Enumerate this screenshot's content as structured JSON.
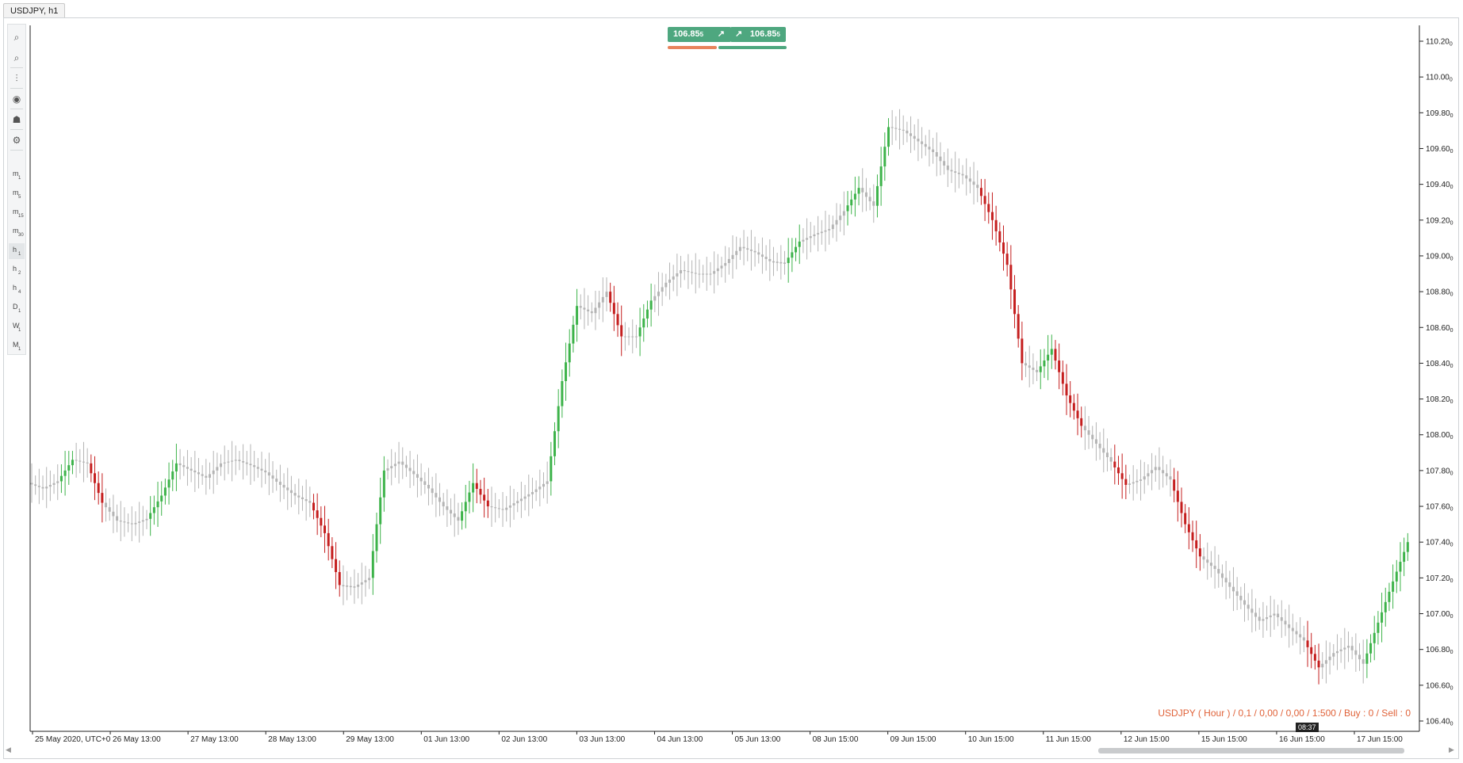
{
  "tab": {
    "title": "USDJPY, h1"
  },
  "toolbar": {
    "tools": [
      {
        "name": "zoom-in-icon",
        "glyph": "⌕"
      },
      {
        "name": "zoom-out-icon",
        "glyph": "⌕"
      },
      {
        "name": "chart-type-icon",
        "glyph": "⫶"
      },
      {
        "name": "indicator-icon",
        "glyph": "◉"
      },
      {
        "name": "trader-icon",
        "glyph": "☗"
      },
      {
        "name": "settings-icon",
        "glyph": "⚙"
      }
    ],
    "timeframes": [
      {
        "main": "m",
        "sub": "1"
      },
      {
        "main": "m",
        "sub": "5"
      },
      {
        "main": "m",
        "sub": "15"
      },
      {
        "main": "m",
        "sub": "30"
      },
      {
        "main": "h",
        "sub": "1",
        "active": true
      },
      {
        "main": "h",
        "sub": "2"
      },
      {
        "main": "h",
        "sub": "4"
      },
      {
        "main": "D",
        "sub": "1"
      },
      {
        "main": "W",
        "sub": "1"
      },
      {
        "main": "M",
        "sub": "1"
      }
    ]
  },
  "trade": {
    "sell_price": "106.85",
    "sell_sup": "5",
    "buy_price": "106.85",
    "buy_sup": "5",
    "sell_color": "#e8835c",
    "buy_color": "#4ea77f"
  },
  "info_line": "USDJPY ( Hour ) / 0,1 / 0,00 / 0,00 / 1:500 / Buy : 0 / Sell : 0",
  "cursor_label": "08:37",
  "colors": {
    "up": "#3db34a",
    "down": "#c51f1f",
    "neutral": "#b4b4b4"
  },
  "chart_data": {
    "type": "line",
    "title": "",
    "xlabel": "",
    "ylabel": "",
    "ylim": [
      106.4,
      110.2
    ],
    "y_ticks": [
      "110.20",
      "110.00",
      "109.80",
      "109.60",
      "109.40",
      "109.20",
      "109.00",
      "108.80",
      "108.60",
      "108.40",
      "108.20",
      "108.00",
      "107.80",
      "107.60",
      "107.40",
      "107.20",
      "107.00",
      "106.80",
      "106.60",
      "106.40"
    ],
    "y_tick_sup": "0",
    "x_ticks": [
      "25 May 2020, UTC+0",
      "26 May 13:00",
      "27 May 13:00",
      "28 May 13:00",
      "29 May 13:00",
      "01 Jun 13:00",
      "02 Jun 13:00",
      "03 Jun 13:00",
      "04 Jun 13:00",
      "05 Jun 13:00",
      "08 Jun 15:00",
      "09 Jun 15:00",
      "10 Jun 15:00",
      "11 Jun 15:00",
      "12 Jun 15:00",
      "15 Jun 15:00",
      "16 Jun 15:00",
      "17 Jun 15:00"
    ],
    "series": [
      {
        "style": "price-bars",
        "x": [
          0,
          4,
          8,
          12,
          16,
          20,
          24,
          28,
          32,
          36,
          40,
          44,
          48,
          52,
          56,
          60,
          64,
          68,
          72,
          76,
          80,
          84,
          88,
          92,
          96,
          100,
          104,
          108,
          112,
          116,
          120,
          124,
          128,
          132,
          136,
          140,
          144,
          148,
          152,
          156,
          160,
          164,
          168,
          172,
          176,
          180,
          184,
          188,
          192,
          196,
          200,
          204,
          208,
          212,
          216,
          220,
          224,
          228,
          232,
          236,
          240,
          244,
          248,
          252,
          256,
          260,
          264,
          268,
          272,
          276,
          280,
          284,
          288,
          292,
          296,
          300,
          304,
          308,
          312,
          316,
          320,
          324,
          328,
          332,
          336,
          340,
          344,
          348,
          352,
          356,
          360,
          364,
          368,
          372
        ],
        "values": [
          107.73,
          107.7,
          107.74,
          107.86,
          107.84,
          107.62,
          107.52,
          107.5,
          107.53,
          107.66,
          107.84,
          107.8,
          107.76,
          107.84,
          107.86,
          107.83,
          107.79,
          107.72,
          107.66,
          107.62,
          107.45,
          107.16,
          107.15,
          107.2,
          107.8,
          107.85,
          107.78,
          107.7,
          107.6,
          107.52,
          107.73,
          107.6,
          107.58,
          107.63,
          107.68,
          107.74,
          108.3,
          108.72,
          108.68,
          108.8,
          108.55,
          108.55,
          108.75,
          108.85,
          108.92,
          108.9,
          108.9,
          108.96,
          109.05,
          109.02,
          108.97,
          108.96,
          109.08,
          109.12,
          109.15,
          109.25,
          109.38,
          109.28,
          109.72,
          109.7,
          109.64,
          109.58,
          109.48,
          109.45,
          109.38,
          109.2,
          108.95,
          108.4,
          108.35,
          108.48,
          108.22,
          108.05,
          107.95,
          107.85,
          107.72,
          107.75,
          107.82,
          107.75,
          107.5,
          107.32,
          107.25,
          107.15,
          107.05,
          106.96,
          107.0,
          106.92,
          106.85,
          106.7,
          106.78,
          106.82,
          106.72,
          106.95,
          107.18,
          107.4
        ]
      }
    ]
  }
}
